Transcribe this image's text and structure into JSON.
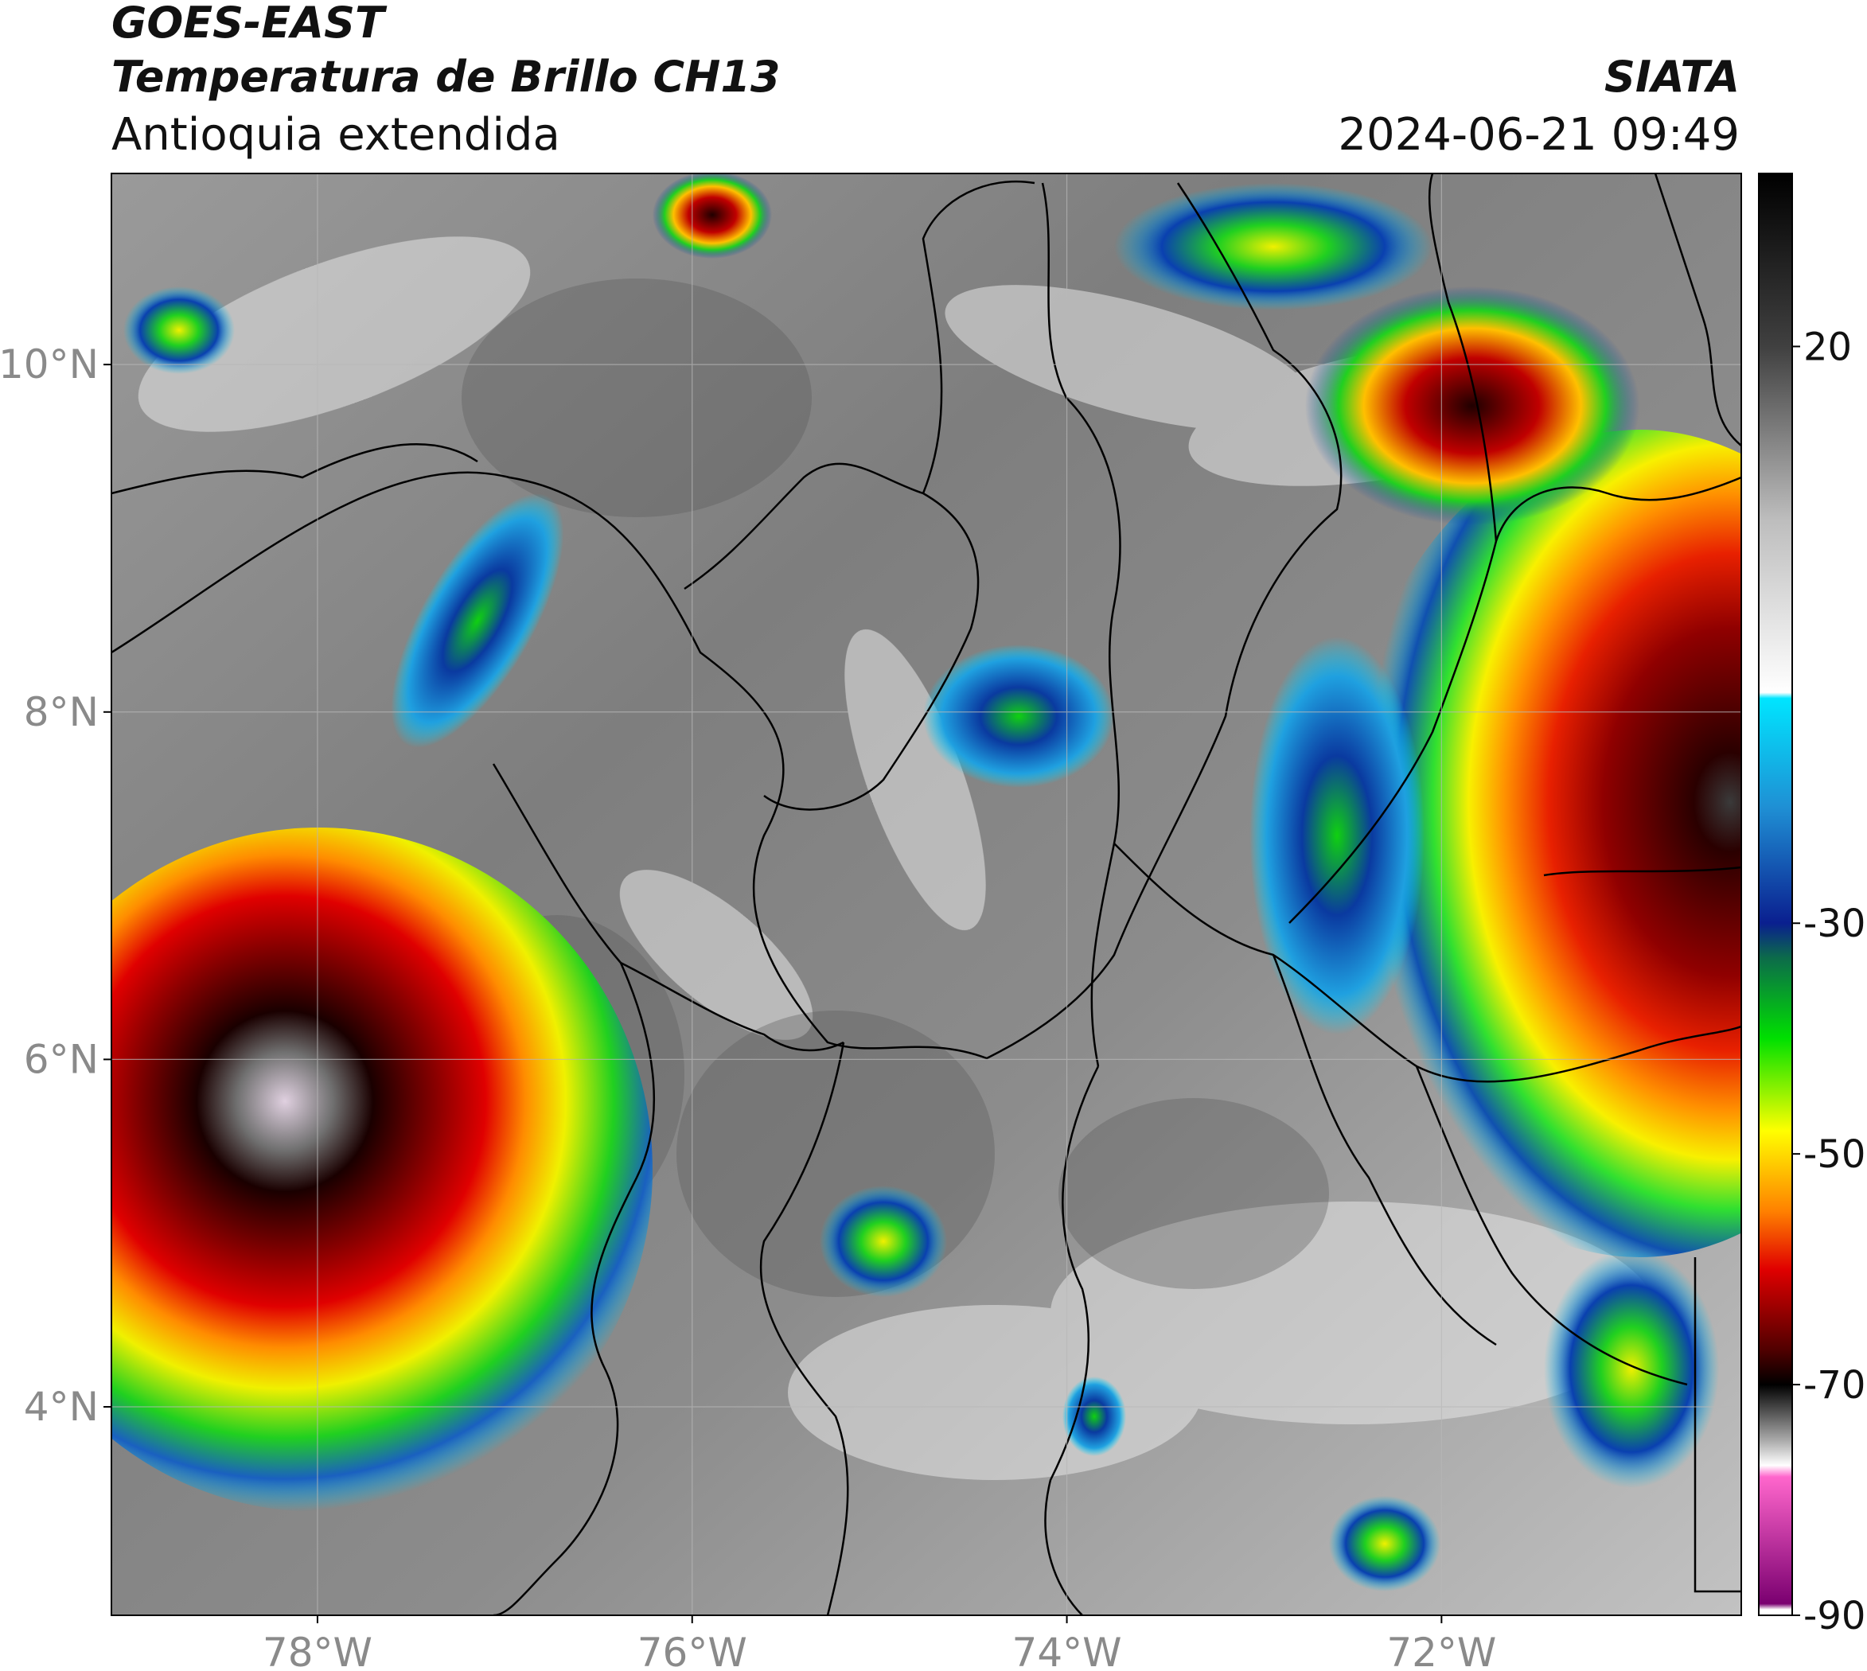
{
  "header": {
    "title_line1": "GOES-EAST",
    "title_line2": "Temperatura de Brillo CH13",
    "subtitle": "Antioquia extendida",
    "brand": "SIATA",
    "timestamp": "2024-06-21 09:49"
  },
  "map": {
    "lat_labels": [
      "10°N",
      "8°N",
      "6°N",
      "4°N"
    ],
    "lon_labels": [
      "78°W",
      "76°W",
      "74°W",
      "72°W"
    ],
    "lat_values": [
      10,
      8,
      6,
      4
    ],
    "lon_values": [
      -78,
      -76,
      -74,
      -72
    ],
    "extent": {
      "lon_min": -79.1,
      "lon_max": -70.4,
      "lat_min": 2.8,
      "lat_max": 11.1
    }
  },
  "colorbar": {
    "range": [
      -90,
      35
    ],
    "tick_labels": [
      "20",
      "-30",
      "-50",
      "-70",
      "-90"
    ],
    "tick_values": [
      20,
      -30,
      -50,
      -70,
      -90
    ],
    "stops": [
      {
        "value": 35,
        "color": "#000000"
      },
      {
        "value": 20,
        "color": "#404040"
      },
      {
        "value": 5,
        "color": "#bdbdbd"
      },
      {
        "value": -10,
        "color": "#ffffff"
      },
      {
        "value": -10.5,
        "color": "#00e5ff"
      },
      {
        "value": -20,
        "color": "#1f8fd4"
      },
      {
        "value": -30,
        "color": "#0a1f8f"
      },
      {
        "value": -33,
        "color": "#0c6b4a"
      },
      {
        "value": -40,
        "color": "#00e000"
      },
      {
        "value": -48,
        "color": "#ffff00"
      },
      {
        "value": -55,
        "color": "#ff8000"
      },
      {
        "value": -60,
        "color": "#e00000"
      },
      {
        "value": -67,
        "color": "#500000"
      },
      {
        "value": -70,
        "color": "#000000"
      },
      {
        "value": -75,
        "color": "#b0b0b0"
      },
      {
        "value": -77,
        "color": "#ffffff"
      },
      {
        "value": -78,
        "color": "#ff66cc"
      },
      {
        "value": -89,
        "color": "#7a0070"
      },
      {
        "value": -89.5,
        "color": "#ffffff"
      }
    ]
  }
}
